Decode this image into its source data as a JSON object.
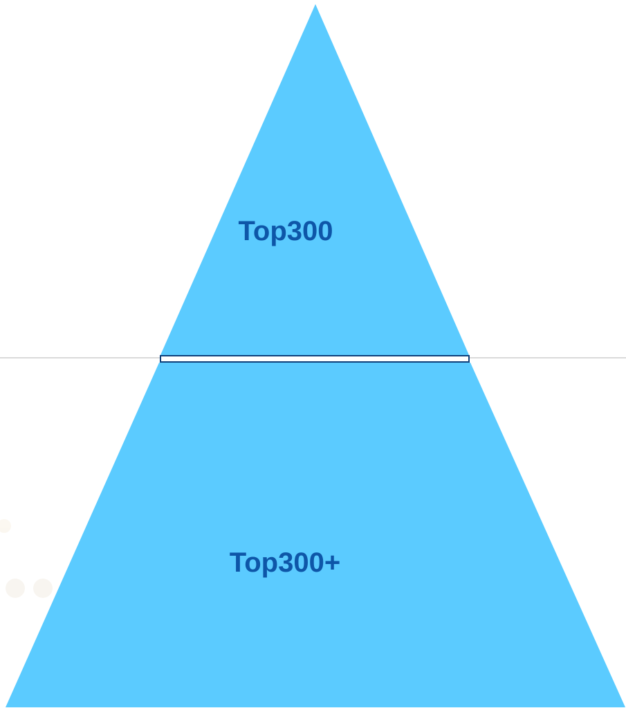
{
  "diagram": {
    "type": "pyramid",
    "colors": {
      "fill": "#5BCBFF",
      "label": "#0E56A8",
      "divider_border": "#0E3F7A",
      "divider_fill": "#FFFFFF",
      "guide_line": "#B4B4B4"
    },
    "tiers": [
      {
        "label": "Top300"
      },
      {
        "label": "Top300+"
      }
    ]
  }
}
